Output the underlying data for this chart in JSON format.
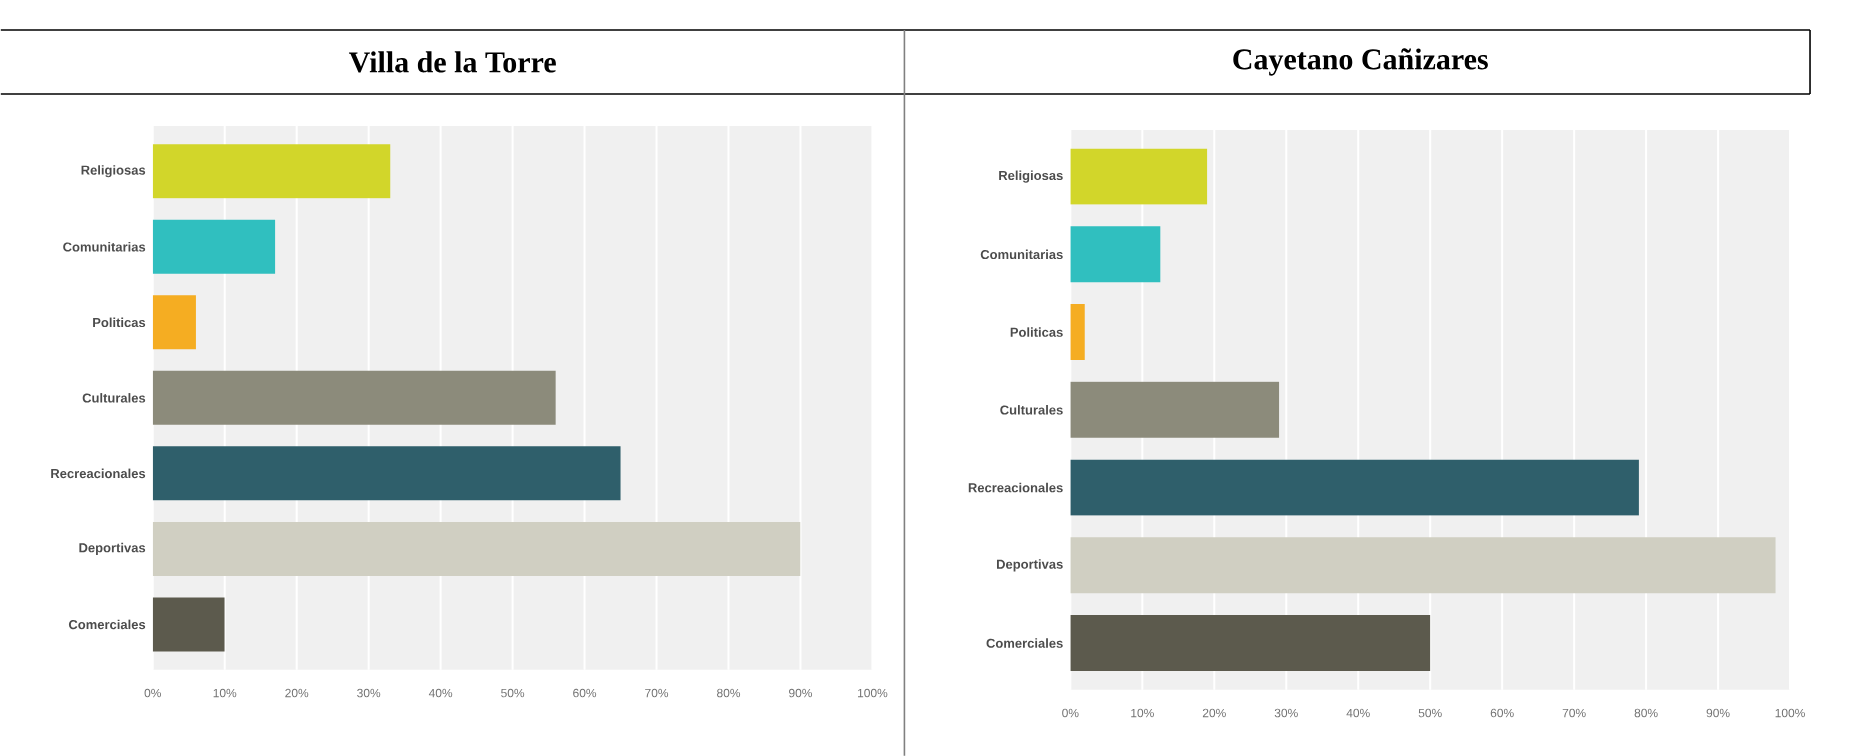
{
  "chart_data": [
    {
      "type": "bar",
      "orientation": "horizontal",
      "title": "Villa de la Torre",
      "categories": [
        "Religiosas",
        "Comunitarias",
        "Politicas",
        "Culturales",
        "Recreacionales",
        "Deportivas",
        "Comerciales"
      ],
      "values": [
        33,
        17,
        6,
        56,
        65,
        90,
        10
      ],
      "colors": [
        "#d2d62a",
        "#30bfbf",
        "#f5ad22",
        "#8c8b7b",
        "#2f5f6b",
        "#d0cfc2",
        "#5c5a4d"
      ],
      "xlim": [
        0,
        100
      ],
      "xticks": [
        {
          "value": 0,
          "label": "0%"
        },
        {
          "value": 10,
          "label": "10%"
        },
        {
          "value": 20,
          "label": "20%"
        },
        {
          "value": 30,
          "label": "30%"
        },
        {
          "value": 40,
          "label": "40%"
        },
        {
          "value": 50,
          "label": "50%"
        },
        {
          "value": 60,
          "label": "60%"
        },
        {
          "value": 70,
          "label": "70%"
        },
        {
          "value": 80,
          "label": "80%"
        },
        {
          "value": 90,
          "label": "90%"
        },
        {
          "value": 100,
          "label": "100%"
        }
      ],
      "grid": "x"
    },
    {
      "type": "bar",
      "orientation": "horizontal",
      "title": "Cayetano Cañizares",
      "categories": [
        "Religiosas",
        "Comunitarias",
        "Politicas",
        "Culturales",
        "Recreacionales",
        "Deportivas",
        "Comerciales"
      ],
      "values": [
        19,
        12.5,
        2,
        29,
        79,
        98,
        50
      ],
      "colors": [
        "#d2d62a",
        "#30bfbf",
        "#f5ad22",
        "#8c8b7b",
        "#2f5f6b",
        "#d0cfc2",
        "#5c5a4d"
      ],
      "xlim": [
        0,
        100
      ],
      "xticks": [
        {
          "value": 0,
          "label": "0%"
        },
        {
          "value": 10,
          "label": "10%"
        },
        {
          "value": 20,
          "label": "20%"
        },
        {
          "value": 30,
          "label": "30%"
        },
        {
          "value": 40,
          "label": "40%"
        },
        {
          "value": 50,
          "label": "50%"
        },
        {
          "value": 60,
          "label": "60%"
        },
        {
          "value": 70,
          "label": "70%"
        },
        {
          "value": 80,
          "label": "80%"
        },
        {
          "value": 90,
          "label": "90%"
        },
        {
          "value": 100,
          "label": "100%"
        }
      ],
      "grid": "x"
    }
  ]
}
